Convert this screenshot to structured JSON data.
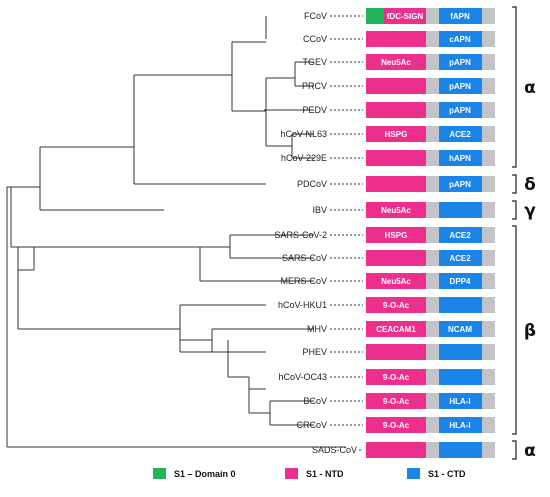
{
  "colors": {
    "domain0": "#22b45a",
    "ntd": "#ec2f8c",
    "ctd": "#1a84e8",
    "gap": "#c2c4c8"
  },
  "taxa": [
    {
      "name": "FCoV",
      "d0": true,
      "ntd": "fDC-SIGN",
      "ctd": "fAPN"
    },
    {
      "name": "CCoV",
      "ntd": "",
      "ctd": "cAPN"
    },
    {
      "name": "TGEV",
      "ntd": "Neu5Ac",
      "ctd": "pAPN"
    },
    {
      "name": "PRCV",
      "ntd": "",
      "ctd": "pAPN"
    },
    {
      "name": "PEDV",
      "ntd": "",
      "ctd": "pAPN"
    },
    {
      "name": "hCoV-NL63",
      "ntd": "HSPG",
      "ctd": "ACE2"
    },
    {
      "name": "hCoV-229E",
      "ntd": "",
      "ctd": "hAPN"
    },
    {
      "name": "PDCoV",
      "ntd": "",
      "ctd": "pAPN"
    },
    {
      "name": "IBV",
      "ntd": "Neu5Ac",
      "ctd": ""
    },
    {
      "name": "SARS-CoV-2",
      "ntd": "HSPG",
      "ctd": "ACE2"
    },
    {
      "name": "SARS-CoV",
      "ntd": "",
      "ctd": "ACE2"
    },
    {
      "name": "MERS-CoV",
      "ntd": "Neu5Ac",
      "ctd": "DPP4"
    },
    {
      "name": "hCoV-HKU1",
      "ntd": "9-O-Ac",
      "ctd": ""
    },
    {
      "name": "MHV",
      "ntd": "CEACAM1",
      "ctd": "NCAM"
    },
    {
      "name": "PHEV",
      "ntd": "",
      "ctd": ""
    },
    {
      "name": "hCoV-OC43",
      "ntd": "9-O-Ac",
      "ctd": ""
    },
    {
      "name": "BCoV",
      "ntd": "9-O-Ac",
      "ctd": "HLA-I"
    },
    {
      "name": "CRCoV",
      "ntd": "9-O-Ac",
      "ctd": "HLA-I"
    },
    {
      "name": "SADS-CoV",
      "ntd": "",
      "ctd": ""
    }
  ],
  "clades": [
    {
      "label": "α",
      "from": 0,
      "to": 6
    },
    {
      "label": "δ",
      "from": 7,
      "to": 7
    },
    {
      "label": "γ",
      "from": 8,
      "to": 8
    },
    {
      "label": "β",
      "from": 9,
      "to": 17
    },
    {
      "label": "α",
      "from": 18,
      "to": 18
    }
  ],
  "legend": [
    {
      "key": "domain0",
      "label": "S1 – Domain 0"
    },
    {
      "key": "ntd",
      "label": "S1 - NTD"
    },
    {
      "key": "ctd",
      "label": "S1 - CTD"
    }
  ]
}
